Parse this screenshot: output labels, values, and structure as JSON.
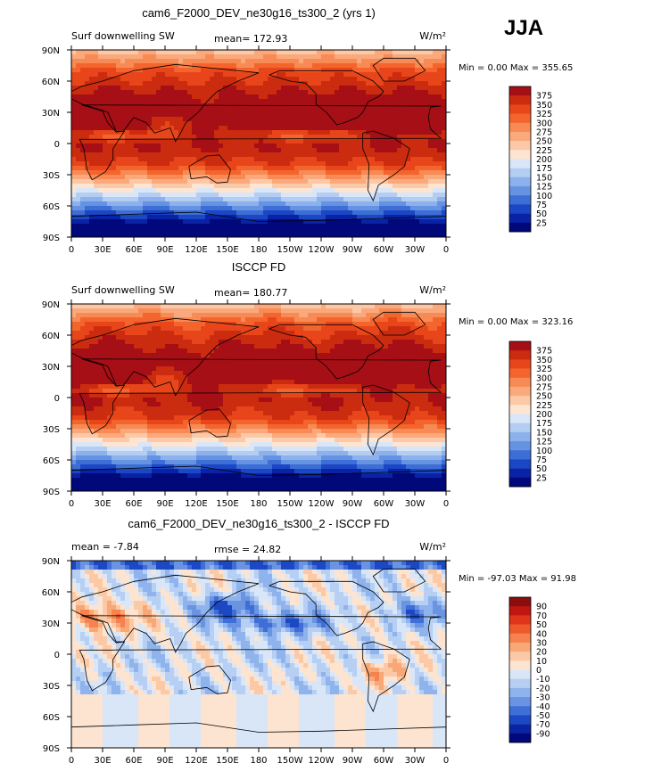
{
  "season_label": "JJA",
  "chart_data": [
    {
      "type": "heatmap",
      "title": "cam6_F2000_DEV_ne30g16_ts300_2 (yrs 1)",
      "subtitle_left": "Surf downwelling SW",
      "mean_text": "mean= 172.93",
      "rmse_text": "",
      "unit_text": "W/m²",
      "minmax_text": "Min =    0.00 Max = 355.65",
      "xticks": [
        "0",
        "30E",
        "60E",
        "90E",
        "120E",
        "150E",
        "180",
        "150W",
        "120W",
        "90W",
        "60W",
        "30W",
        "0"
      ],
      "yticks": [
        "90N",
        "60N",
        "30N",
        "0",
        "30S",
        "60S",
        "90S"
      ],
      "xlim": [
        0,
        360
      ],
      "ylim": [
        -90,
        90
      ],
      "field": "sw",
      "colorbar": {
        "levels": [
          "375",
          "350",
          "325",
          "300",
          "275",
          "250",
          "225",
          "200",
          "175",
          "150",
          "125",
          "100",
          "75",
          "50",
          "25"
        ],
        "colors": [
          "#a50f15",
          "#cb2b0f",
          "#e8451a",
          "#f3652d",
          "#f78a55",
          "#f9a97c",
          "#fbc9a8",
          "#fde5d2",
          "#d9e6f8",
          "#b3cdf3",
          "#8cb1ed",
          "#6692e2",
          "#3d6ed6",
          "#1b46c4",
          "#0a22a6",
          "#00087a"
        ]
      }
    },
    {
      "type": "heatmap",
      "title": "ISCCP FD",
      "subtitle_left": "Surf downwelling SW",
      "mean_text": "mean= 180.77",
      "rmse_text": "",
      "unit_text": "W/m²",
      "minmax_text": "Min =    0.00 Max = 323.16",
      "xticks": [
        "0",
        "30E",
        "60E",
        "90E",
        "120E",
        "150E",
        "180",
        "150W",
        "120W",
        "90W",
        "60W",
        "30W",
        "0"
      ],
      "yticks": [
        "90N",
        "60N",
        "30N",
        "0",
        "30S",
        "60S",
        "90S"
      ],
      "xlim": [
        0,
        360
      ],
      "ylim": [
        -90,
        90
      ],
      "field": "sw",
      "colorbar": {
        "levels": [
          "375",
          "350",
          "325",
          "300",
          "275",
          "250",
          "225",
          "200",
          "175",
          "150",
          "125",
          "100",
          "75",
          "50",
          "25"
        ],
        "colors": [
          "#a50f15",
          "#cb2b0f",
          "#e8451a",
          "#f3652d",
          "#f78a55",
          "#f9a97c",
          "#fbc9a8",
          "#fde5d2",
          "#d9e6f8",
          "#b3cdf3",
          "#8cb1ed",
          "#6692e2",
          "#3d6ed6",
          "#1b46c4",
          "#0a22a6",
          "#00087a"
        ]
      }
    },
    {
      "type": "heatmap",
      "title": "cam6_F2000_DEV_ne30g16_ts300_2 - ISCCP FD",
      "subtitle_left": "mean =   -7.84",
      "mean_text": "rmse =   24.82",
      "rmse_text": "",
      "unit_text": "W/m²",
      "minmax_text": "Min = -97.03 Max =  91.98",
      "xticks": [
        "0",
        "30E",
        "60E",
        "90E",
        "120E",
        "150E",
        "180",
        "150W",
        "120W",
        "90W",
        "60W",
        "30W",
        "0"
      ],
      "yticks": [
        "90N",
        "60N",
        "30N",
        "0",
        "30S",
        "60S",
        "90S"
      ],
      "xlim": [
        0,
        360
      ],
      "ylim": [
        -90,
        90
      ],
      "field": "diff",
      "colorbar": {
        "levels": [
          "90",
          "70",
          "50",
          "40",
          "30",
          "20",
          "10",
          "0",
          "-10",
          "-20",
          "-30",
          "-40",
          "-50",
          "-70",
          "-90"
        ],
        "colors": [
          "#8b0d0d",
          "#c0160f",
          "#e0351a",
          "#ef5a2d",
          "#f5824f",
          "#f8a777",
          "#fbc9a6",
          "#fde4d1",
          "#d8e6f8",
          "#b6cff2",
          "#8fb3ec",
          "#6a94e2",
          "#3f6fd6",
          "#1d48c3",
          "#0b24a4",
          "#00087a"
        ]
      }
    }
  ]
}
